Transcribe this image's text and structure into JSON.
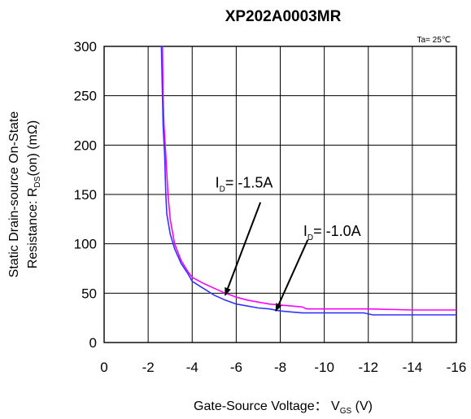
{
  "chart_data": {
    "type": "line",
    "title": "XP202A0003MR",
    "condition": "Ta= 25℃",
    "xlabel": {
      "main": "Gate-Source Voltage： V",
      "sub": "GS",
      "unit": " (V)"
    },
    "ylabel": {
      "line1": "Static Drain-source On-State",
      "line2_prefix": "Resistance: R",
      "line2_sub": "DS",
      "line2_suffix": "(on)  (mΩ)"
    },
    "xlim": [
      0,
      -16
    ],
    "ylim": [
      0,
      300
    ],
    "x_ticks": [
      0,
      -2,
      -4,
      -6,
      -8,
      -10,
      -12,
      -14,
      -16
    ],
    "x_tick_labels": [
      "0",
      "-2",
      "-4",
      "-6",
      "-8",
      "-10",
      "-12",
      "-14",
      "-16"
    ],
    "y_ticks": [
      0,
      50,
      100,
      150,
      200,
      250,
      300
    ],
    "y_tick_labels": [
      "0",
      "50",
      "100",
      "150",
      "200",
      "250",
      "300"
    ],
    "grid": true,
    "series": [
      {
        "name": "ID= -1.5A",
        "color": "#ff00ff",
        "points": [
          [
            -2.65,
            300
          ],
          [
            -2.68,
            250
          ],
          [
            -2.72,
            220
          ],
          [
            -2.8,
            190
          ],
          [
            -2.9,
            150
          ],
          [
            -3.0,
            125
          ],
          [
            -3.2,
            100
          ],
          [
            -3.5,
            83
          ],
          [
            -3.8,
            72
          ],
          [
            -4.0,
            66
          ],
          [
            -4.5,
            60
          ],
          [
            -5.0,
            55
          ],
          [
            -5.5,
            50
          ],
          [
            -6.0,
            46
          ],
          [
            -6.5,
            43
          ],
          [
            -7.0,
            41
          ],
          [
            -7.5,
            39
          ],
          [
            -8.0,
            38
          ],
          [
            -8.5,
            37
          ],
          [
            -9.0,
            36
          ],
          [
            -9.2,
            34
          ],
          [
            -10,
            34
          ],
          [
            -12,
            34
          ],
          [
            -14,
            33
          ],
          [
            -16,
            33
          ]
        ]
      },
      {
        "name": "ID= -1.0A",
        "color": "#3333ff",
        "points": [
          [
            -2.6,
            300
          ],
          [
            -2.65,
            250
          ],
          [
            -2.68,
            220
          ],
          [
            -2.75,
            190
          ],
          [
            -2.8,
            150
          ],
          [
            -2.85,
            130
          ],
          [
            -3.0,
            110
          ],
          [
            -3.2,
            95
          ],
          [
            -3.5,
            80
          ],
          [
            -3.8,
            70
          ],
          [
            -4.0,
            62
          ],
          [
            -4.5,
            55
          ],
          [
            -5.0,
            48
          ],
          [
            -5.5,
            43
          ],
          [
            -6.0,
            39
          ],
          [
            -6.5,
            37
          ],
          [
            -7.0,
            35
          ],
          [
            -7.5,
            34
          ],
          [
            -8.0,
            32
          ],
          [
            -8.5,
            31
          ],
          [
            -9.0,
            30
          ],
          [
            -10,
            30
          ],
          [
            -11.8,
            30
          ],
          [
            -12.2,
            28
          ],
          [
            -14,
            28
          ],
          [
            -16,
            28
          ]
        ]
      }
    ],
    "annotations": [
      {
        "label_prefix": "I",
        "label_sub": "D",
        "label_suffix": "= -1.5A",
        "text_x": -5.05,
        "text_y": 157,
        "tip_x": -5.5,
        "tip_y": 48,
        "tail_x": -7.1,
        "tail_y": 142
      },
      {
        "label_prefix": "I",
        "label_sub": "D",
        "label_suffix": "= -1.0A",
        "text_x": -9.05,
        "text_y": 108,
        "tip_x": -7.8,
        "tip_y": 32,
        "tail_x": -9.25,
        "tail_y": 104
      }
    ]
  }
}
